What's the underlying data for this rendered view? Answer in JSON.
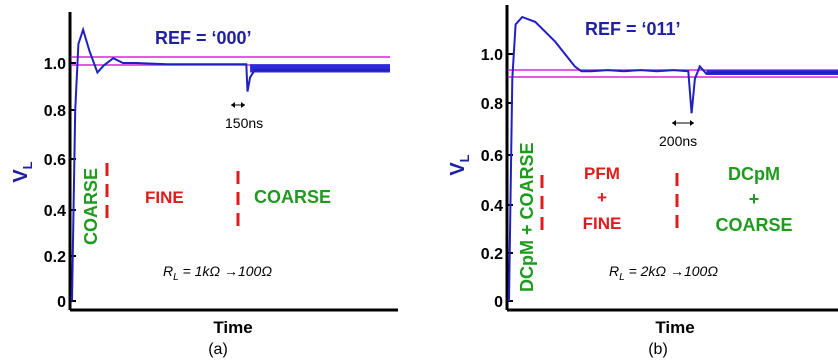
{
  "chart_data": [
    {
      "type": "line",
      "panel_label": "(a)",
      "xlabel": "Time",
      "ylabel_main": "V",
      "ylabel_sub": "L",
      "yticks": [
        "0",
        "0.2",
        "0.4",
        "0.6",
        "0.8",
        "1.0"
      ],
      "ylim": [
        0,
        1.2
      ],
      "annotation_ref": "REF = ‘000’",
      "annotation_delay": "150ns",
      "annotation_load": {
        "prefix": "R",
        "sub": "L",
        "text": " = 1kΩ →100Ω"
      },
      "modes": [
        {
          "label": "COARSE",
          "color": "#1f9a1f",
          "orientation": "vertical"
        },
        {
          "label": "FINE",
          "color": "#e01b1b",
          "orientation": "horizontal"
        },
        {
          "label": "COARSE",
          "color": "#1f9a1f",
          "orientation": "horizontal"
        }
      ],
      "thresholds": [
        1.03,
        0.99
      ],
      "series": [
        {
          "color": "#2020c0",
          "x": [
            0.0,
            0.01,
            0.02,
            0.035,
            0.055,
            0.08,
            0.1,
            0.13,
            0.16,
            0.2,
            0.3,
            0.4,
            0.5,
            0.548,
            0.552,
            0.56,
            0.575,
            0.6,
            1.0
          ],
          "y": [
            0.0,
            0.8,
            1.08,
            1.14,
            1.05,
            0.96,
            0.99,
            1.02,
            1.0,
            1.0,
            0.995,
            0.995,
            0.995,
            0.995,
            0.88,
            0.94,
            0.97,
            0.97,
            0.97
          ]
        }
      ],
      "ripple_band": [
        0.96,
        0.995
      ],
      "ripple_start": 0.56
    },
    {
      "type": "line",
      "panel_label": "(b)",
      "xlabel": "Time",
      "ylabel_main": "V",
      "ylabel_sub": "L",
      "yticks": [
        "0",
        "0.2",
        "0.4",
        "0.6",
        "0.8",
        "1.0"
      ],
      "ylim": [
        0,
        1.2
      ],
      "annotation_ref": "REF = ‘011’",
      "annotation_delay": "200ns",
      "annotation_load": {
        "prefix": "R",
        "sub": "L",
        "text": " = 2kΩ →100Ω"
      },
      "modes": [
        {
          "label": "DCpM + COARSE",
          "color": "#1f9a1f",
          "orientation": "vertical"
        },
        {
          "label": "PFM",
          "label2": "+",
          "label3": "FINE",
          "color": "#e01b1b",
          "orientation": "stack"
        },
        {
          "label": "DCpM",
          "label2": "+",
          "label3": "COARSE",
          "color": "#1f9a1f",
          "orientation": "stack"
        }
      ],
      "thresholds": [
        0.935,
        0.905
      ],
      "series": [
        {
          "color": "#2020c0",
          "x": [
            0.0,
            0.01,
            0.02,
            0.04,
            0.08,
            0.14,
            0.2,
            0.22,
            0.25,
            0.3,
            0.35,
            0.4,
            0.45,
            0.5,
            0.545,
            0.555,
            0.565,
            0.58,
            0.6,
            0.62,
            1.0
          ],
          "y": [
            0.0,
            0.9,
            1.12,
            1.15,
            1.13,
            1.05,
            0.95,
            0.93,
            0.93,
            0.935,
            0.93,
            0.935,
            0.93,
            0.935,
            0.93,
            0.76,
            0.9,
            0.95,
            0.92,
            0.925,
            0.925
          ]
        }
      ],
      "ripple_band": [
        0.915,
        0.935
      ],
      "ripple_start": 0.6
    }
  ]
}
